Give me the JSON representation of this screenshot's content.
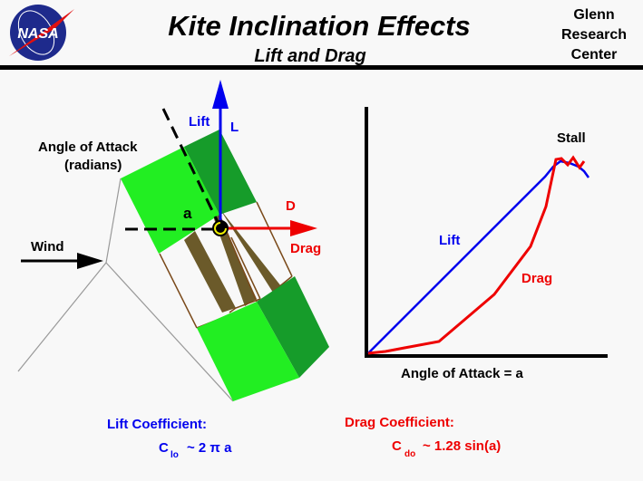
{
  "header": {
    "title": "Kite Inclination Effects",
    "subtitle": "Lift and Drag",
    "center_line1": "Glenn",
    "center_line2": "Research",
    "center_line3": "Center",
    "logo_text": "NASA"
  },
  "kite": {
    "angle_label_line1": "Angle  of  Attack",
    "angle_label_line2": "(radians)",
    "angle_symbol": "a",
    "wind_label": "Wind",
    "lift_label": "Lift",
    "lift_symbol": "L",
    "drag_symbol": "D",
    "drag_label": "Drag"
  },
  "graph": {
    "stall_label": "Stall",
    "lift_label": "Lift",
    "drag_label": "Drag",
    "xlabel": "Angle  of  Attack = a"
  },
  "formulas": {
    "lift_title": "Lift  Coefficient:",
    "lift_c": "C",
    "lift_sub": "lo",
    "lift_rhs": "~  2   π  a",
    "drag_title": "Drag  Coefficient:",
    "drag_c": "C",
    "drag_sub": "do",
    "drag_rhs": "~ 1.28  sin(a)"
  },
  "colors": {
    "lift": "#0000ee",
    "drag": "#ee0000",
    "kite_light": "#22ee22",
    "kite_dark": "#169c2a",
    "frame": "#7a4a1a"
  }
}
